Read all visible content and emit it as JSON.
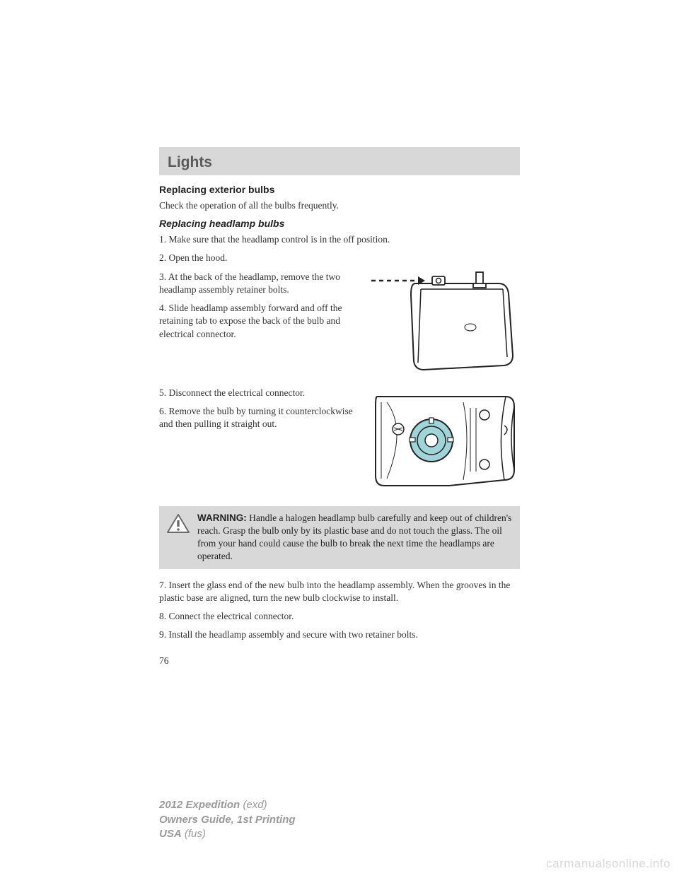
{
  "section_title": "Lights",
  "h1": "Replacing exterior bulbs",
  "intro": "Check the operation of all the bulbs frequently.",
  "h2": "Replacing headlamp bulbs",
  "steps": {
    "s1": "1. Make sure that the headlamp control is in the off position.",
    "s2": "2. Open the hood.",
    "s3": "3. At the back of the headlamp, remove the two headlamp assembly retainer bolts.",
    "s4": "4. Slide headlamp assembly forward and off the retaining tab to expose the back of the bulb and electrical connector.",
    "s5": "5. Disconnect the electrical connector.",
    "s6": "6. Remove the bulb by turning it counterclockwise and then pulling it straight out.",
    "s7": "7. Insert the glass end of the new bulb into the headlamp assembly. When the grooves in the plastic base are aligned, turn the new bulb clockwise to install.",
    "s8": "8. Connect the electrical connector.",
    "s9": "9. Install the headlamp assembly and secure with two retainer bolts."
  },
  "warning_label": "WARNING:",
  "warning_text": " Handle a halogen headlamp bulb carefully and keep out of children's reach. Grasp the bulb only by its plastic base and do not touch the glass. The oil from your hand could cause the bulb to break the next time the headlamps are operated.",
  "page_number": "76",
  "footer": {
    "line1a": "2012 Expedition",
    "line1b": " (exd)",
    "line2": "Owners Guide, 1st Printing",
    "line3a": "USA",
    "line3b": " (fus)"
  },
  "watermark": "carmanualsonline.info",
  "diagram1": {
    "stroke": "#222222",
    "fill": "#ffffff",
    "dash": "6,5"
  },
  "diagram2": {
    "stroke": "#222222",
    "fill": "#ffffff",
    "accent": "#9fd4d9"
  },
  "warning_icon": {
    "stroke": "#6b6b6b",
    "fill": "#ffffff"
  }
}
